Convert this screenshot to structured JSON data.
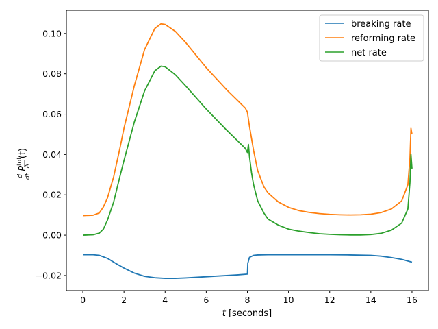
{
  "chart_data": {
    "type": "line",
    "xlabel_var": "t",
    "xlabel_unit": " [seconds]",
    "ylabel_frac_num": "d",
    "ylabel_frac_den": "dt",
    "ylabel_main": "P",
    "ylabel_sup": "tot",
    "ylabel_sub": "A",
    "ylabel_arg": "(t)",
    "xlim": [
      -0.8,
      16.8
    ],
    "ylim": [
      -0.0275,
      0.1115
    ],
    "xticks": [
      0,
      2,
      4,
      6,
      8,
      10,
      12,
      14,
      16
    ],
    "xtick_labels": [
      "0",
      "2",
      "4",
      "6",
      "8",
      "10",
      "12",
      "14",
      "16"
    ],
    "yticks": [
      -0.02,
      0.0,
      0.02,
      0.04,
      0.06,
      0.08,
      0.1
    ],
    "ytick_labels": [
      "−0.02",
      "0.00",
      "0.02",
      "0.04",
      "0.06",
      "0.08",
      "0.10"
    ],
    "grid": false,
    "legend_position": "upper-right",
    "series": [
      {
        "name": "breaking rate",
        "color": "#1f77b4",
        "x": [
          0,
          0.5,
          0.8,
          1.2,
          1.6,
          2.0,
          2.5,
          3.0,
          3.5,
          4.0,
          4.5,
          5.0,
          6.0,
          7.0,
          7.5,
          8.0,
          8.02,
          8.1,
          8.3,
          8.5,
          9.0,
          10.0,
          11.0,
          12.0,
          13.0,
          14.0,
          14.5,
          15.0,
          15.5,
          16.0
        ],
        "y": [
          -0.0097,
          -0.0097,
          -0.01,
          -0.0115,
          -0.014,
          -0.0163,
          -0.0188,
          -0.0204,
          -0.0211,
          -0.0214,
          -0.0214,
          -0.0212,
          -0.0206,
          -0.02,
          -0.0197,
          -0.0193,
          -0.014,
          -0.011,
          -0.01,
          -0.0098,
          -0.0097,
          -0.0097,
          -0.0097,
          -0.0097,
          -0.0098,
          -0.01,
          -0.0104,
          -0.0111,
          -0.012,
          -0.0134
        ]
      },
      {
        "name": "reforming rate",
        "color": "#ff7f0e",
        "x": [
          0,
          0.5,
          0.8,
          1.0,
          1.2,
          1.5,
          1.8,
          2.0,
          2.5,
          3.0,
          3.5,
          3.8,
          4.0,
          4.5,
          5.0,
          6.0,
          7.0,
          7.5,
          7.9,
          8.0,
          8.1,
          8.3,
          8.5,
          8.8,
          9.0,
          9.5,
          10.0,
          10.5,
          11.0,
          11.5,
          12.0,
          12.5,
          13.0,
          13.5,
          14.0,
          14.5,
          15.0,
          15.5,
          15.8,
          15.9,
          15.95,
          16.0
        ],
        "y": [
          0.0097,
          0.0099,
          0.011,
          0.014,
          0.0185,
          0.029,
          0.043,
          0.053,
          0.074,
          0.092,
          0.1025,
          0.1048,
          0.1045,
          0.101,
          0.0955,
          0.083,
          0.072,
          0.067,
          0.063,
          0.061,
          0.054,
          0.042,
          0.032,
          0.024,
          0.021,
          0.0165,
          0.0138,
          0.0122,
          0.0113,
          0.0107,
          0.0103,
          0.0101,
          0.01,
          0.0101,
          0.0104,
          0.0112,
          0.013,
          0.017,
          0.025,
          0.038,
          0.053,
          0.05
        ]
      },
      {
        "name": "net rate",
        "color": "#2ca02c",
        "x": [
          0,
          0.5,
          0.8,
          1.0,
          1.2,
          1.5,
          1.8,
          2.0,
          2.5,
          3.0,
          3.5,
          3.8,
          4.0,
          4.5,
          5.0,
          6.0,
          7.0,
          7.5,
          7.9,
          8.0,
          8.05,
          8.1,
          8.2,
          8.3,
          8.5,
          8.8,
          9.0,
          9.5,
          10.0,
          10.5,
          11.0,
          11.5,
          12.0,
          12.5,
          13.0,
          13.5,
          14.0,
          14.5,
          15.0,
          15.5,
          15.8,
          15.9,
          15.95,
          16.0
        ],
        "y": [
          0.0,
          0.0002,
          0.001,
          0.003,
          0.0075,
          0.0165,
          0.029,
          0.037,
          0.056,
          0.0715,
          0.0815,
          0.0838,
          0.0835,
          0.0795,
          0.074,
          0.0625,
          0.052,
          0.047,
          0.043,
          0.041,
          0.045,
          0.039,
          0.031,
          0.025,
          0.017,
          0.011,
          0.008,
          0.005,
          0.003,
          0.002,
          0.0013,
          0.0007,
          0.0004,
          0.0002,
          0.0001,
          0.0001,
          0.0003,
          0.0009,
          0.0025,
          0.006,
          0.013,
          0.026,
          0.04,
          0.033
        ]
      }
    ]
  }
}
